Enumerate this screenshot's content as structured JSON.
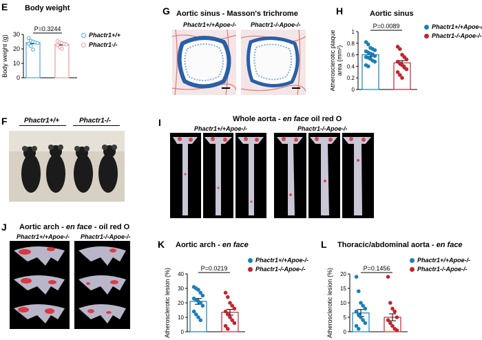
{
  "colors": {
    "blue": "#1a7fb8",
    "red": "#c4242e",
    "pink": "#e89aa0",
    "lightblue": "#4aa9dd"
  },
  "panels": {
    "E": {
      "label": "E",
      "title": "Body weight",
      "ylabel": "Body weight (g)",
      "pvalue": "P=0.3244",
      "legend": [
        "Phactr1+/+",
        "Phactr1-/-"
      ]
    },
    "F": {
      "label": "F",
      "geno_a": "Phactr1+/+",
      "geno_b": "Phactr1-/-"
    },
    "G": {
      "label": "G",
      "title": "Aortic sinus - Masson's trichrome",
      "geno_a": "Phactr1+/+Apoe-/-",
      "geno_b": "Phactr1-/-Apoe-/-"
    },
    "H": {
      "label": "H",
      "title": "Aortic sinus",
      "ylabel": "Atherosclerotic plaque area (mm²)",
      "pvalue": "P=0.0089",
      "legend": [
        "Phactr1+/+Apoe-/-",
        "Phactr1-/-Apoe-/-"
      ]
    },
    "I": {
      "label": "I",
      "title_a": "Whole aorta - ",
      "title_b": "en face",
      "title_c": " oil red O",
      "geno_a": "Phactr1+/+Apoe-/-",
      "geno_b": "Phactr1-/-Apoe-/-"
    },
    "J": {
      "label": "J",
      "title_a": "Aortic arch - ",
      "title_b": "en face",
      "title_c": " - oil red O",
      "geno_a": "Phactr1+/+Apoe-/-",
      "geno_b": "Phactr1-/-Apoe-/-"
    },
    "K": {
      "label": "K",
      "title_a": "Aortic arch - ",
      "title_b": "en face",
      "ylabel": "Atherosclerotic lesion (%)",
      "pvalue": "P=0.0219",
      "legend": [
        "Phactr1+/+Apoe-/-",
        "Phactr1-/-Apoe-/-"
      ]
    },
    "L": {
      "label": "L",
      "title_a": "Thoracic/abdominal aorta - ",
      "title_b": "en face",
      "ylabel": "Atherosclerotic lesion (%)",
      "pvalue": "P=0.1456",
      "legend": [
        "Phactr1+/+Apoe-/-",
        "Phactr1-/-Apoe-/-"
      ]
    }
  },
  "chart_data": [
    {
      "id": "E",
      "type": "bar",
      "title": "Body weight",
      "ylabel": "Body weight (g)",
      "ylim": [
        0,
        30
      ],
      "yticks": [
        0,
        10,
        20,
        30
      ],
      "series": [
        {
          "name": "Phactr1+/+",
          "mean": 24.3,
          "sem": 0.8,
          "points": [
            27.5,
            25.5,
            25,
            24.5,
            24,
            23.5,
            22,
            19.5
          ]
        },
        {
          "name": "Phactr1-/-",
          "mean": 23.2,
          "sem": 0.6,
          "points": [
            25.5,
            24.5,
            24,
            23.5,
            23,
            22.5,
            21,
            20
          ]
        }
      ]
    },
    {
      "id": "H",
      "type": "bar",
      "title": "Aortic sinus",
      "ylabel": "Atherosclerotic plaque area (mm²)",
      "ylim": [
        0,
        1.0
      ],
      "yticks": [
        0,
        0.2,
        0.4,
        0.6,
        0.8,
        1.0
      ],
      "series": [
        {
          "name": "Phactr1+/+Apoe-/-",
          "mean": 0.6,
          "sem": 0.03,
          "points": [
            0.82,
            0.78,
            0.72,
            0.7,
            0.68,
            0.66,
            0.64,
            0.62,
            0.6,
            0.58,
            0.56,
            0.55,
            0.53,
            0.5,
            0.48,
            0.42,
            0.4
          ]
        },
        {
          "name": "Phactr1-/-Apoe-/-",
          "mean": 0.46,
          "sem": 0.04,
          "points": [
            0.74,
            0.7,
            0.6,
            0.56,
            0.52,
            0.48,
            0.45,
            0.42,
            0.38,
            0.35,
            0.3,
            0.25,
            0.2
          ]
        }
      ]
    },
    {
      "id": "K",
      "type": "bar",
      "title": "Aortic arch - en face",
      "ylabel": "Atherosclerotic lesion (%)",
      "ylim": [
        0,
        40
      ],
      "yticks": [
        0,
        10,
        20,
        30,
        40
      ],
      "series": [
        {
          "name": "Phactr1+/+Apoe-/-",
          "mean": 21,
          "sem": 2,
          "points": [
            31,
            30,
            29,
            27,
            25,
            23,
            22,
            21,
            20,
            18,
            14,
            12,
            10,
            8
          ]
        },
        {
          "name": "Phactr1-/-Apoe-/-",
          "mean": 13.5,
          "sem": 2,
          "points": [
            27,
            24,
            20,
            18,
            16,
            14,
            12,
            10,
            8,
            6,
            4,
            2
          ]
        }
      ]
    },
    {
      "id": "L",
      "type": "bar",
      "title": "Thoracic/abdominal aorta - en face",
      "ylabel": "Atherosclerotic lesion (%)",
      "ylim": [
        0,
        20
      ],
      "yticks": [
        0,
        5,
        10,
        15,
        20
      ],
      "series": [
        {
          "name": "Phactr1+/+Apoe-/-",
          "mean": 6.5,
          "sem": 1.2,
          "points": [
            19,
            14,
            10,
            9,
            8,
            7,
            6,
            5,
            4,
            3,
            2,
            1
          ]
        },
        {
          "name": "Phactr1-/-Apoe-/-",
          "mean": 5,
          "sem": 1.2,
          "points": [
            19,
            10,
            8,
            7,
            5,
            4,
            3,
            2,
            1,
            0.5
          ]
        }
      ]
    }
  ]
}
